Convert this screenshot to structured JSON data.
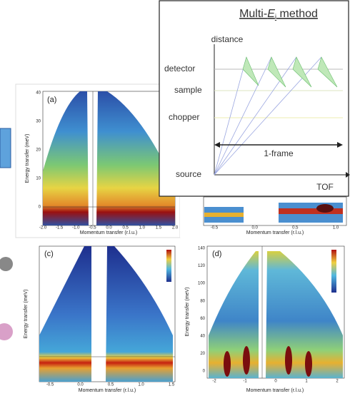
{
  "inset": {
    "title": "Multi-",
    "title_symbol": "E",
    "title_sub": "i",
    "title_suffix": " method",
    "y_label": "distance",
    "levels": [
      "detector",
      "sample",
      "chopper",
      "source"
    ],
    "frame_label": "1-frame",
    "x_label": "TOF"
  },
  "panels": [
    {
      "label": "(a)",
      "y_label": "Energy transfer (meV)",
      "x_label": "Momentum transfer (r.l.u.)",
      "yticks": [
        "0",
        "10",
        "20",
        "30",
        "40"
      ],
      "xticks": [
        "-2.0",
        "-1.5",
        "-1.0",
        "-0.5",
        "0.0",
        "0.5",
        "1.0",
        "1.5",
        "2.0"
      ]
    },
    {
      "x_label": "Momentum transfer (r.l.u.)",
      "xticks": [
        "-0.5",
        "0.0",
        "0.5",
        "1.0"
      ]
    },
    {
      "label": "(c)",
      "y_label": "Energy transfer (meV)",
      "x_label": "Momentum transfer (r.l.u.)",
      "xticks": [
        "-0.5",
        "0.0",
        "0.5",
        "1.0",
        "1.5"
      ]
    },
    {
      "label": "(d)",
      "y_label": "Energy transfer (meV)",
      "x_label": "Momentum transfer (r.l.u.)",
      "yticks": [
        "0",
        "20",
        "40",
        "60",
        "80",
        "100",
        "120",
        "140"
      ],
      "xticks": [
        "-2",
        "-1",
        "0",
        "1",
        "2"
      ]
    }
  ]
}
